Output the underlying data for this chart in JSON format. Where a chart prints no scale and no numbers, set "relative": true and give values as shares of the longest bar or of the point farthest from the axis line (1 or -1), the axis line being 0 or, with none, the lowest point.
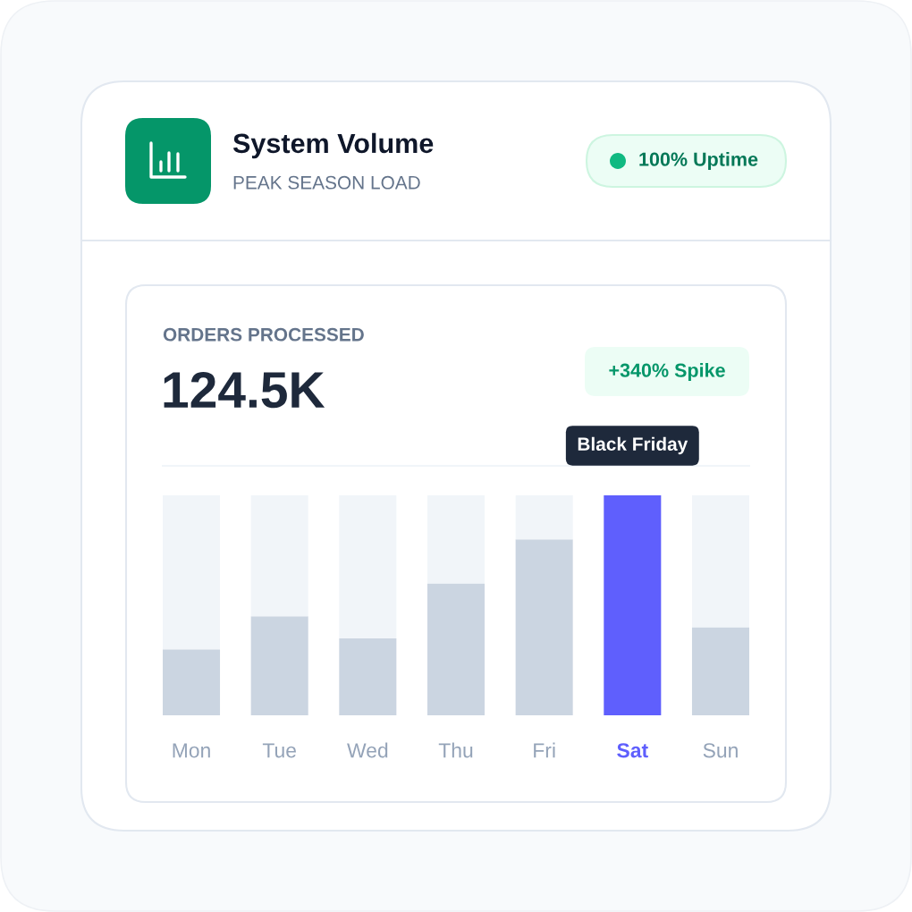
{
  "chart_data": {
    "type": "bar",
    "title": "System Volume",
    "subtitle": "PEAK SEASON LOAD",
    "categories": [
      "Mon",
      "Tue",
      "Wed",
      "Thu",
      "Fri",
      "Sat",
      "Sun"
    ],
    "relative": true,
    "stacked": true,
    "series": [
      {
        "color": "#cbd5e1",
        "colors": [
          "#cbd5e1",
          "#cbd5e1",
          "#cbd5e1",
          "#cbd5e1",
          "#cbd5e1",
          "#5f5ffd",
          "#cbd5e1"
        ],
        "values": [
          0.3,
          0.45,
          0.35,
          0.6,
          0.8,
          1,
          0.4
        ]
      },
      {
        "color": "#f1f5f9",
        "values": [
          0.7,
          0.55,
          0.65,
          0.4,
          0.2,
          null,
          0.6
        ]
      }
    ],
    "annotations": [
      "100% Uptime",
      "ORDERS PROCESSED",
      "124.5K",
      "+340% Spike",
      {
        "text": "Black Friday",
        "x": "Sat",
        "y": 1
      }
    ]
  }
}
